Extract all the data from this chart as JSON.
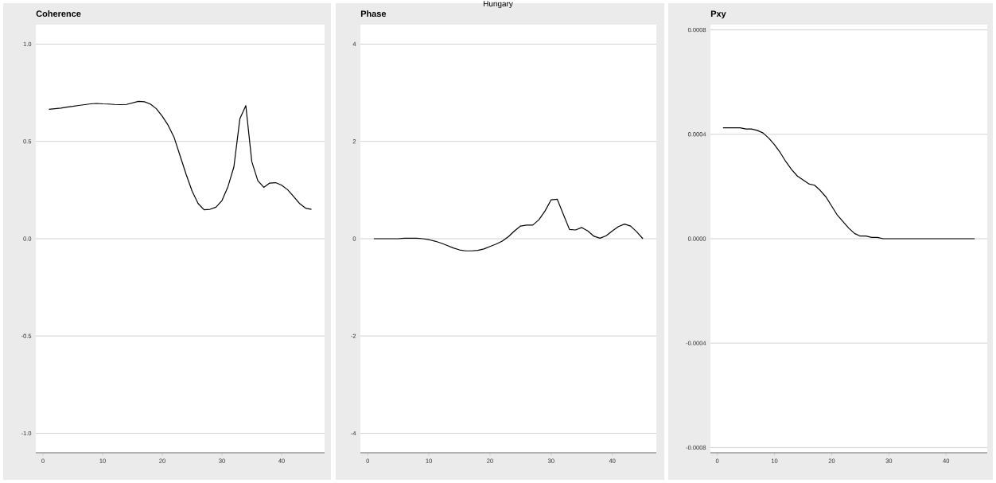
{
  "chart_data": [
    {
      "type": "line",
      "title": "Coherence",
      "grid": "y",
      "xlim": [
        -1.2,
        47.2
      ],
      "ylim": [
        -1.1,
        1.1
      ],
      "xticks": [
        0,
        10,
        20,
        30,
        40
      ],
      "yticks": [
        {
          "value": -1,
          "label": "-1.0"
        },
        -0.5,
        {
          "value": 0,
          "label": "0.0"
        },
        0.5,
        {
          "value": 1,
          "label": "1.0"
        }
      ],
      "x": [
        1,
        2,
        3,
        4,
        5,
        6,
        7,
        8,
        9,
        10,
        11,
        12,
        13,
        14,
        15,
        16,
        17,
        18,
        19,
        20,
        21,
        22,
        23,
        24,
        25,
        26,
        27,
        28,
        29,
        30,
        31,
        32,
        33,
        34,
        35,
        36,
        37,
        38,
        39,
        40,
        41,
        42,
        43,
        44,
        45
      ],
      "series": [
        {
          "color": "#000000",
          "values": [
            0.665,
            0.668,
            0.671,
            0.676,
            0.68,
            0.685,
            0.689,
            0.693,
            0.695,
            0.693,
            0.692,
            0.69,
            0.689,
            0.69,
            0.698,
            0.706,
            0.704,
            0.692,
            0.668,
            0.629,
            0.582,
            0.519,
            0.424,
            0.33,
            0.244,
            0.181,
            0.149,
            0.151,
            0.162,
            0.196,
            0.267,
            0.369,
            0.616,
            0.684,
            0.396,
            0.299,
            0.264,
            0.286,
            0.288,
            0.275,
            0.252,
            0.217,
            0.181,
            0.157,
            0.151
          ]
        }
      ]
    },
    {
      "type": "line",
      "title": "Phase",
      "annotations": [
        "Hungary"
      ],
      "grid": "y",
      "xlim": [
        -1.2,
        47.2
      ],
      "ylim": [
        -4.4,
        4.4
      ],
      "xticks": [
        0,
        10,
        20,
        30,
        40
      ],
      "yticks": [
        -4,
        -2,
        0,
        2,
        4
      ],
      "x": [
        1,
        2,
        3,
        4,
        5,
        6,
        7,
        8,
        9,
        10,
        11,
        12,
        13,
        14,
        15,
        16,
        17,
        18,
        19,
        20,
        21,
        22,
        23,
        24,
        25,
        26,
        27,
        28,
        29,
        30,
        31,
        32,
        33,
        34,
        35,
        36,
        37,
        38,
        39,
        40,
        41,
        42,
        43,
        44,
        45
      ],
      "series": [
        {
          "color": "#000000",
          "values": [
            0,
            0,
            0,
            0,
            0,
            0.01,
            0.01,
            0.01,
            0,
            -0.02,
            -0.05,
            -0.09,
            -0.14,
            -0.19,
            -0.23,
            -0.25,
            -0.25,
            -0.24,
            -0.21,
            -0.16,
            -0.11,
            -0.05,
            0.04,
            0.16,
            0.26,
            0.28,
            0.28,
            0.39,
            0.57,
            0.8,
            0.81,
            0.5,
            0.19,
            0.18,
            0.23,
            0.16,
            0.05,
            0.01,
            0.06,
            0.16,
            0.25,
            0.3,
            0.26,
            0.14,
            0
          ]
        }
      ]
    },
    {
      "type": "line",
      "title": "Pxy",
      "grid": "y",
      "xlim": [
        -1.2,
        47.2
      ],
      "ylim": [
        -0.00082,
        0.00082
      ],
      "xticks": [
        0,
        10,
        20,
        30,
        40
      ],
      "yticks": [
        {
          "value": -0.0008,
          "label": "-0.0008"
        },
        {
          "value": -0.0004,
          "label": "-0.0004"
        },
        {
          "value": 0,
          "label": "0.0000"
        },
        {
          "value": 0.0004,
          "label": "0.0004"
        },
        {
          "value": 0.0008,
          "label": "0.0008"
        }
      ],
      "x": [
        1,
        2,
        3,
        4,
        5,
        6,
        7,
        8,
        9,
        10,
        11,
        12,
        13,
        14,
        15,
        16,
        17,
        18,
        19,
        20,
        21,
        22,
        23,
        24,
        25,
        26,
        27,
        28,
        29,
        30,
        31,
        32,
        33,
        34,
        35,
        36,
        37,
        38,
        39,
        40,
        41,
        42,
        43,
        44,
        45
      ],
      "series": [
        {
          "color": "#000000",
          "values": [
            0.000425,
            0.000425,
            0.000425,
            0.000425,
            0.00042,
            0.00042,
            0.000415,
            0.000405,
            0.000385,
            0.00036,
            0.00033,
            0.000295,
            0.000265,
            0.00024,
            0.000225,
            0.00021,
            0.000205,
            0.000185,
            0.00016,
            0.000125,
            9e-05,
            6.5e-05,
            4e-05,
            2e-05,
            1e-05,
            1e-05,
            5e-06,
            5e-06,
            0,
            0,
            0,
            0,
            0,
            0,
            0,
            0,
            0,
            0,
            0,
            0,
            0,
            0,
            0,
            0,
            0
          ]
        }
      ]
    }
  ]
}
